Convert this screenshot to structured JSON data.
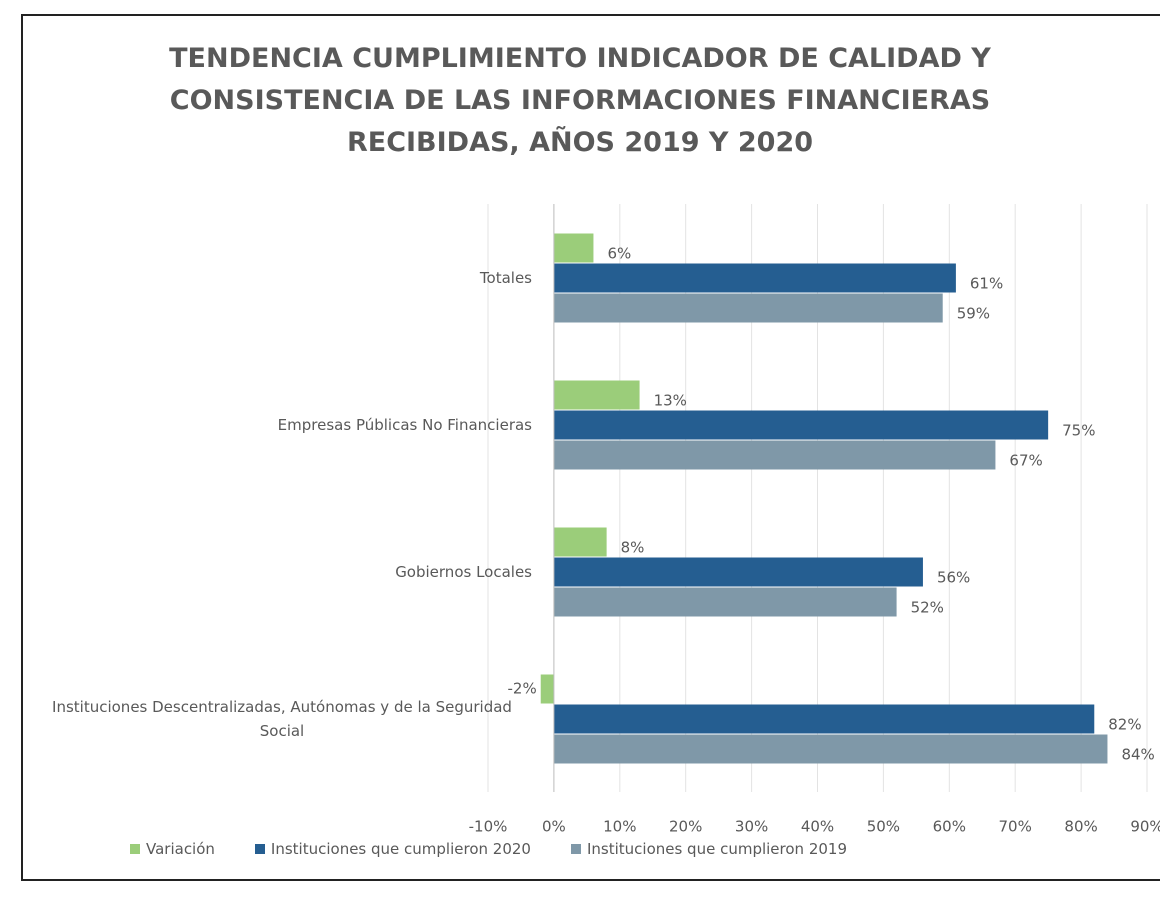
{
  "chart_data": {
    "type": "bar",
    "orientation": "horizontal",
    "title": "TENDENCIA CUMPLIMIENTO INDICADOR DE CALIDAD Y CONSISTENCIA DE LAS INFORMACIONES FINANCIERAS RECIBIDAS, AÑOS 2019 Y 2020",
    "categories": [
      "Totales",
      "Empresas Públicas No Financieras",
      "Gobiernos Locales",
      "Instituciones Descentralizadas, Autónomas y de la Seguridad Social"
    ],
    "series": [
      {
        "name": "Variación",
        "color": "#9bcd7a",
        "values": [
          6,
          13,
          8,
          -2
        ],
        "value_labels": [
          "6%",
          "13%",
          "8%",
          "-2%"
        ]
      },
      {
        "name": "Instituciones que cumplieron 2020",
        "color": "#255e91",
        "values": [
          61,
          75,
          56,
          82
        ],
        "value_labels": [
          "61%",
          "75%",
          "56%",
          "82%"
        ]
      },
      {
        "name": "Instituciones que cumplieron 2019",
        "color": "#7f98a8",
        "values": [
          59,
          67,
          52,
          84
        ],
        "value_labels": [
          "59%",
          "67%",
          "52%",
          "84%"
        ]
      }
    ],
    "xlim": [
      -10,
      90
    ],
    "xticks": [
      {
        "value": -10,
        "label": "-10%"
      },
      {
        "value": 0,
        "label": "0%"
      },
      {
        "value": 10,
        "label": "10%"
      },
      {
        "value": 20,
        "label": "20%"
      },
      {
        "value": 30,
        "label": "30%"
      },
      {
        "value": 40,
        "label": "40%"
      },
      {
        "value": 50,
        "label": "50%"
      },
      {
        "value": 60,
        "label": "60%"
      },
      {
        "value": 70,
        "label": "70%"
      },
      {
        "value": 80,
        "label": "80%"
      },
      {
        "value": 90,
        "label": "90%"
      }
    ],
    "grid": true,
    "legend": "bottom"
  }
}
